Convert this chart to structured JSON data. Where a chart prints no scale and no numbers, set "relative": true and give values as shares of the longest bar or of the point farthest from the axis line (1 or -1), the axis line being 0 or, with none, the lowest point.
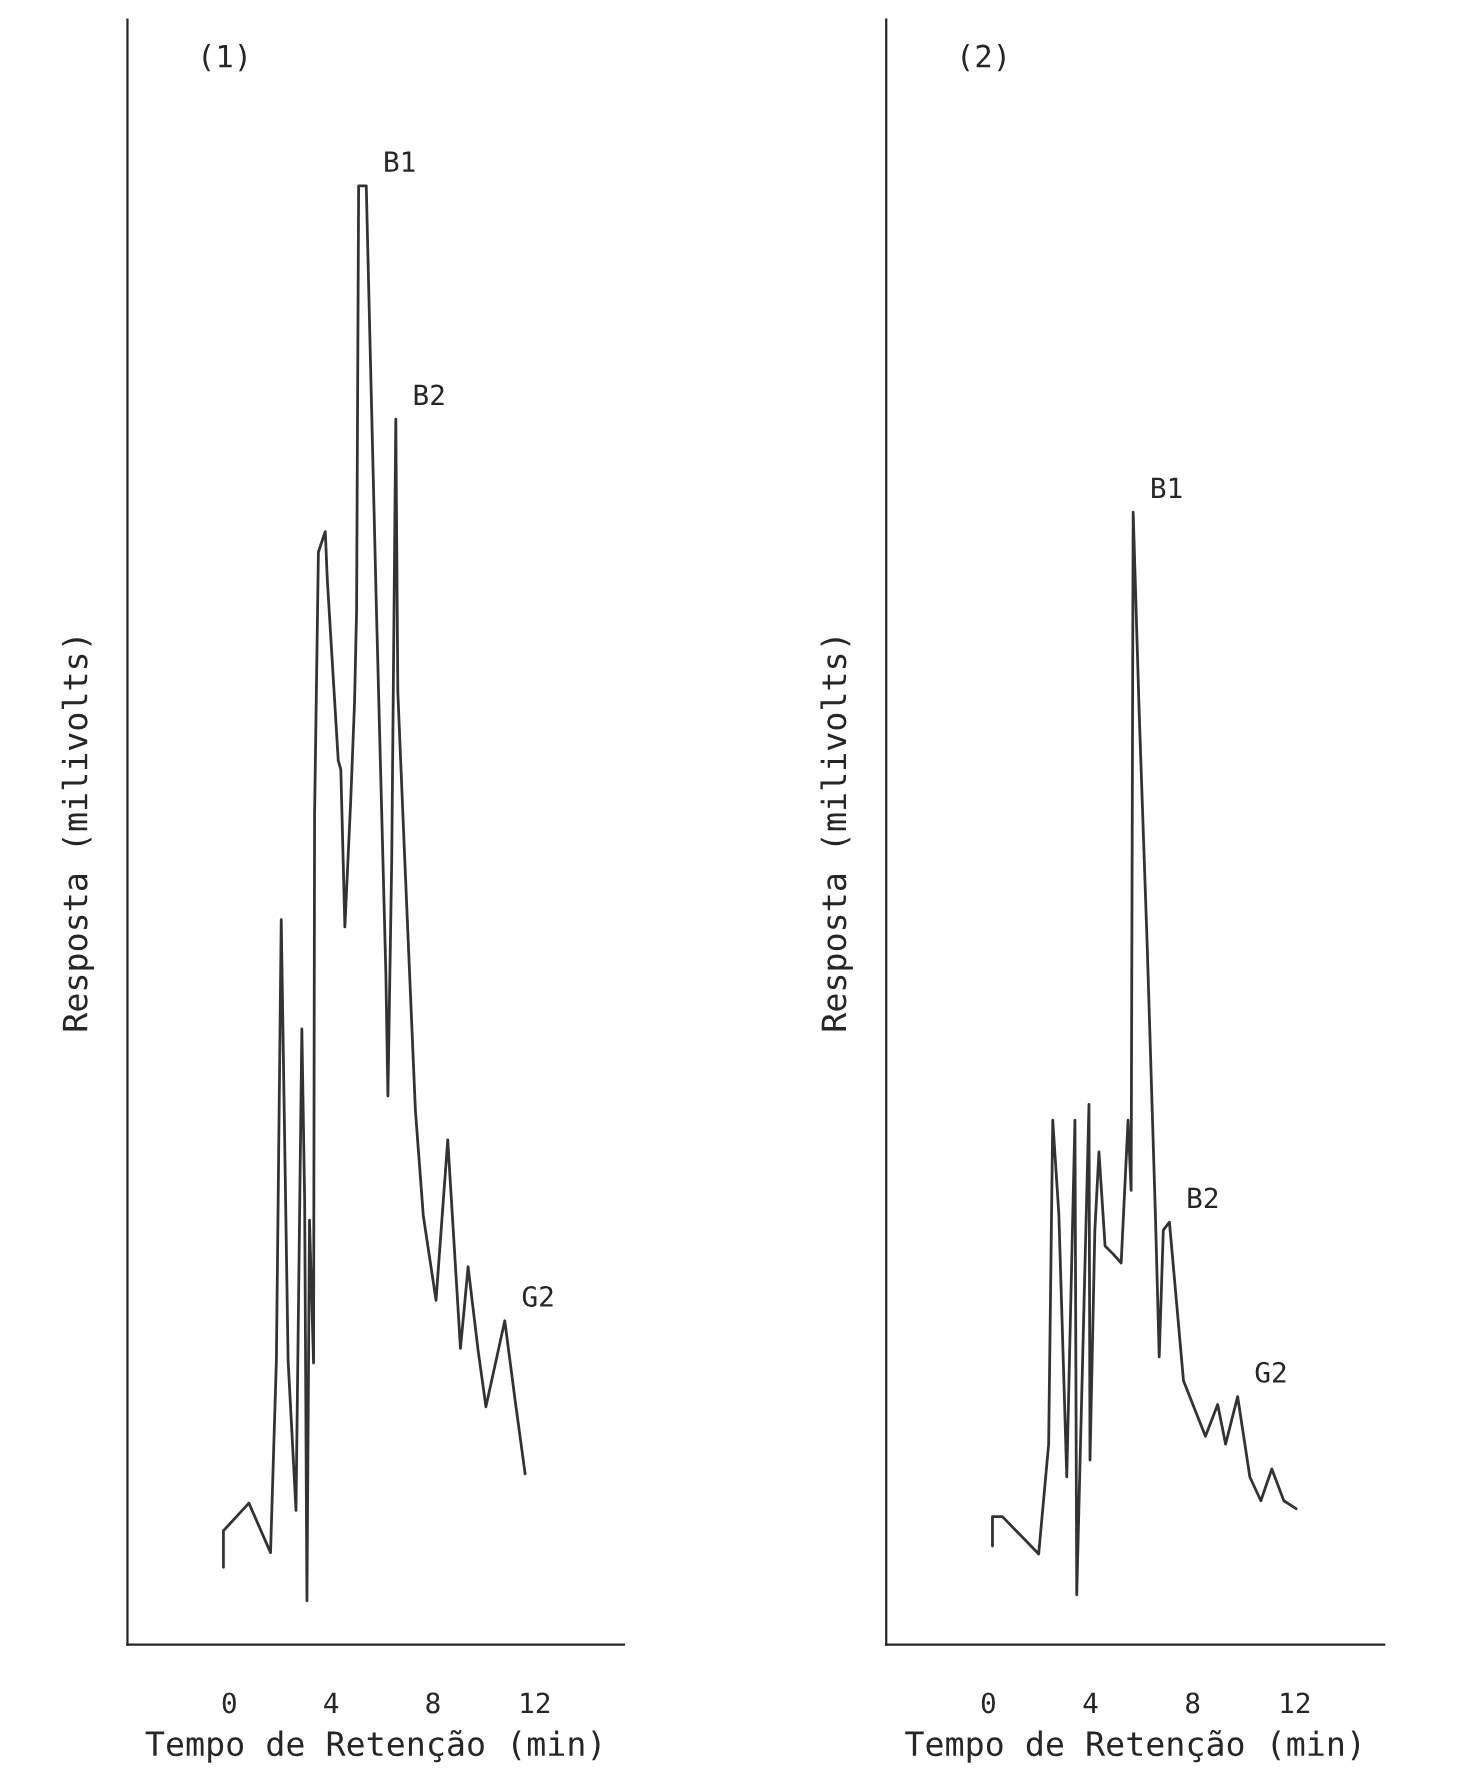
{
  "chart_data": [
    {
      "type": "line",
      "title": "(1)",
      "xlabel": "Tempo de Retenção (min)",
      "ylabel": "Resposta (milivolts)",
      "relative": true,
      "xlim": [
        -4,
        15.5
      ],
      "xticks": [
        0,
        4,
        8,
        12
      ],
      "grid": false,
      "legend": false,
      "marker": "none",
      "line_style": "solid",
      "series": [
        {
          "color": "#333333",
          "x": [
            -0.23,
            -0.23,
            0.77,
            1.62,
            1.85,
            2.04,
            2.31,
            2.62,
            2.85,
            2.96,
            3.05,
            3.15,
            3.31,
            3.35,
            3.5,
            3.77,
            3.85,
            4.28,
            4.38,
            4.54,
            4.77,
            4.92,
            5.0,
            5.08,
            5.38,
            5.77,
            6.15,
            6.23,
            6.38,
            6.54,
            6.62,
            6.89,
            7.31,
            7.62,
            8.12,
            8.58,
            9.08,
            9.38,
            9.77,
            10.08,
            10.82,
            11.23,
            11.62
          ],
          "values": [
            0.053,
            0.078,
            0.097,
            0.063,
            0.195,
            0.497,
            0.195,
            0.092,
            0.422,
            0.305,
            0.03,
            0.291,
            0.193,
            0.569,
            0.749,
            0.763,
            0.73,
            0.606,
            0.6,
            0.492,
            0.579,
            0.646,
            0.709,
            1.0,
            1.0,
            0.716,
            0.46,
            0.376,
            0.538,
            0.84,
            0.653,
            0.539,
            0.366,
            0.294,
            0.236,
            0.346,
            0.203,
            0.259,
            0.202,
            0.163,
            0.222,
            0.167,
            0.117
          ]
        }
      ],
      "annotations": [
        {
          "text": "B1",
          "x": 5.38,
          "y": 1.0
        },
        {
          "text": "B2",
          "x": 6.54,
          "y": 0.84
        },
        {
          "text": "G2",
          "x": 10.82,
          "y": 0.222
        }
      ]
    },
    {
      "type": "line",
      "title": "(2)",
      "xlabel": "Tempo de Retenção (min)",
      "ylabel": "Resposta (milivolts)",
      "relative": true,
      "xlim": [
        -4,
        15.5
      ],
      "xticks": [
        0,
        4,
        8,
        12
      ],
      "grid": false,
      "legend": false,
      "marker": "none",
      "line_style": "solid",
      "series": [
        {
          "color": "#333333",
          "x": [
            0.16,
            0.16,
            0.55,
            1.97,
            2.36,
            2.52,
            2.76,
            3.07,
            3.39,
            3.46,
            3.7,
            3.94,
            3.98,
            4.17,
            4.33,
            4.57,
            4.88,
            5.2,
            5.47,
            5.59,
            5.67,
            5.91,
            6.22,
            6.54,
            6.69,
            6.85,
            7.09,
            7.64,
            8.5,
            8.98,
            9.29,
            9.76,
            10.24,
            10.67,
            11.1,
            11.57,
            12.05
          ],
          "values": [
            0.087,
            0.113,
            0.113,
            0.08,
            0.177,
            0.463,
            0.38,
            0.148,
            0.463,
            0.044,
            0.26,
            0.477,
            0.163,
            0.366,
            0.435,
            0.352,
            0.345,
            0.337,
            0.463,
            0.401,
            1.0,
            0.82,
            0.617,
            0.38,
            0.254,
            0.366,
            0.373,
            0.233,
            0.184,
            0.212,
            0.177,
            0.219,
            0.148,
            0.127,
            0.155,
            0.127,
            0.12
          ]
        }
      ],
      "annotations": [
        {
          "text": "B1",
          "x": 5.67,
          "y": 1.0
        },
        {
          "text": "B2",
          "x": 7.09,
          "y": 0.373
        },
        {
          "text": "G2",
          "x": 9.76,
          "y": 0.219
        }
      ]
    }
  ]
}
